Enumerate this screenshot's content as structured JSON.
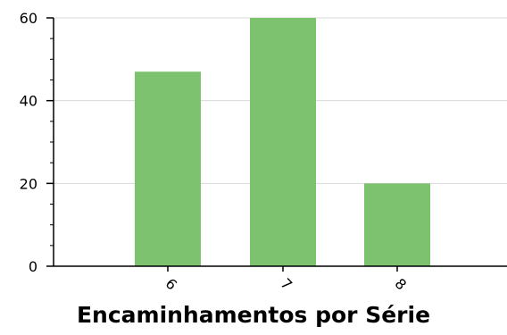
{
  "chart_data": {
    "type": "bar",
    "categories": [
      "6",
      "7",
      "8"
    ],
    "values": [
      47,
      60,
      20
    ],
    "title": "Encaminhamentos por Série",
    "xlabel": "",
    "ylabel": "",
    "ylim": [
      0,
      60
    ],
    "yticks": [
      "0",
      "20",
      "40",
      "60"
    ],
    "grid": true,
    "bar_color": "#7dc36f",
    "grid_color": "#d9d9d9",
    "axis_color": "#000000"
  }
}
